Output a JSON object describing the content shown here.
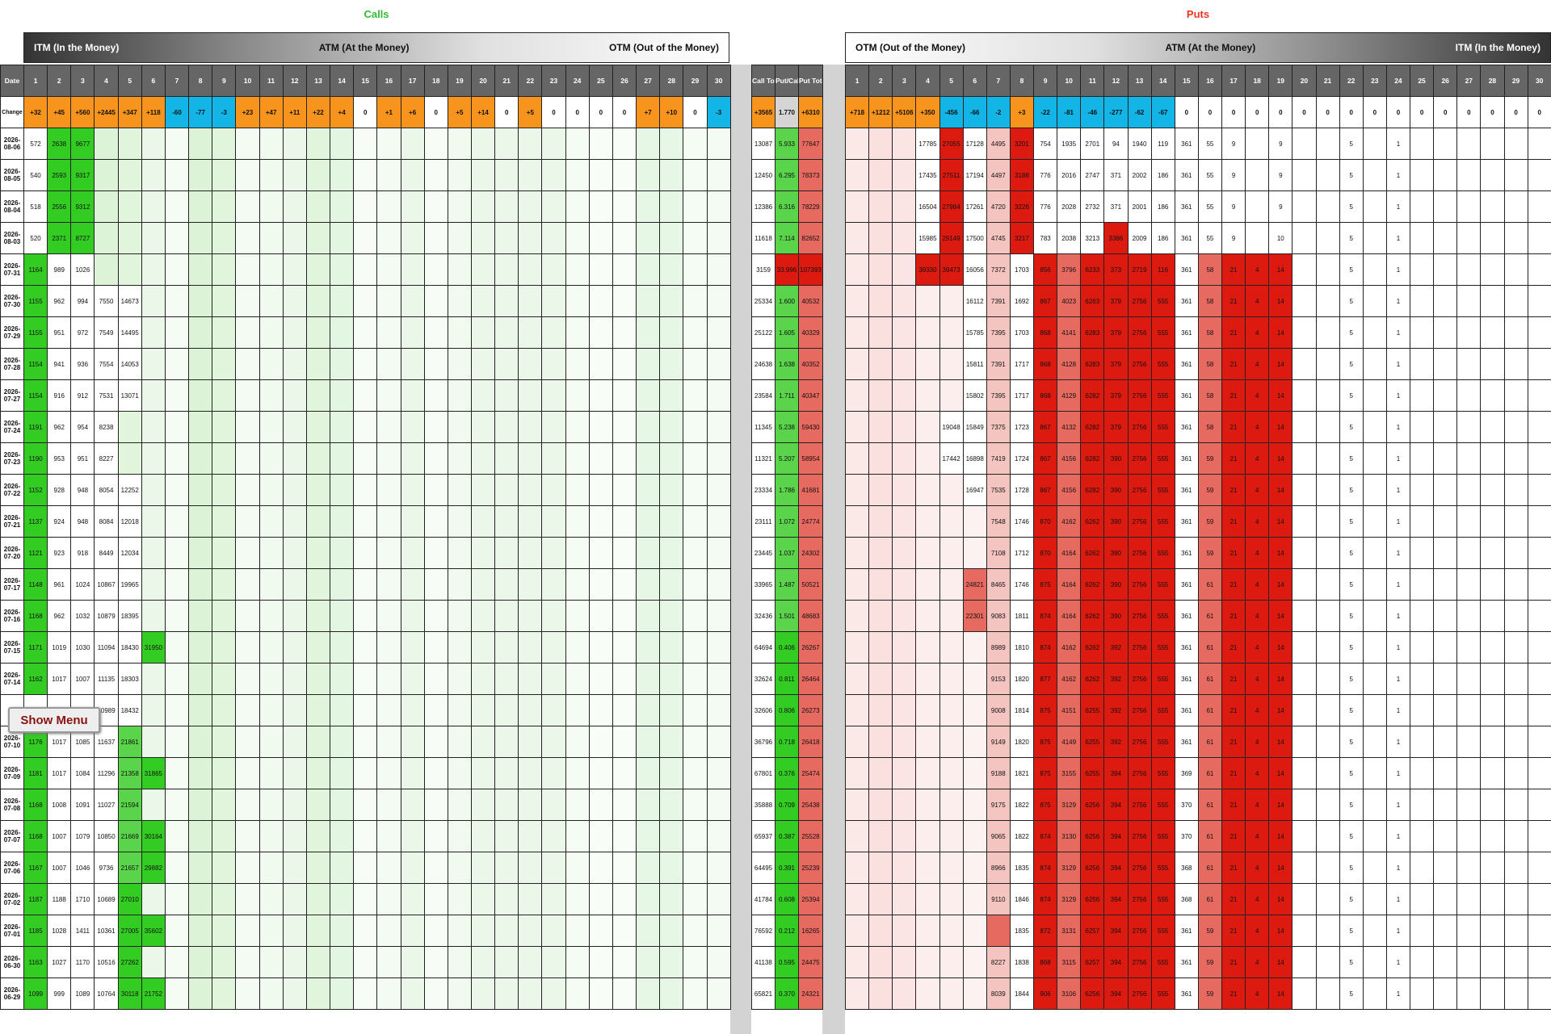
{
  "titles": {
    "calls": "Calls",
    "puts": "Puts"
  },
  "calls_band": {
    "left": "ITM (In the Money)",
    "center": "ATM (At the Money)",
    "right": "OTM (Out of the Money)"
  },
  "puts_band": {
    "left": "OTM (Out of the Money)",
    "center": "ATM (At the Money)",
    "right": "ITM (In the Money)"
  },
  "headers": {
    "date": "Date",
    "strikes": [
      "1",
      "2",
      "3",
      "4",
      "5",
      "6",
      "7",
      "8",
      "9",
      "10",
      "11",
      "12",
      "13",
      "14",
      "15",
      "16",
      "17",
      "18",
      "19",
      "20",
      "21",
      "22",
      "23",
      "24",
      "25",
      "26",
      "27",
      "28",
      "29",
      "30"
    ],
    "call_total": "Call Total",
    "pcr": "Put/Call",
    "put_total": "Put Total"
  },
  "change_label": "Change",
  "changes": {
    "calls": [
      "+32",
      "+45",
      "+560",
      "+2445",
      "+347",
      "+118",
      "-60",
      "-77",
      "-3",
      "+23",
      "+47",
      "+11",
      "+22",
      "+4",
      "0",
      "+1",
      "+6",
      "0",
      "+5",
      "+14",
      "0",
      "+5",
      "0",
      "0",
      "0",
      "0",
      "+7",
      "+10",
      "0",
      "-3"
    ],
    "call_total": "+3565",
    "pcr": "1.770",
    "put_total": "+6310",
    "puts": [
      "+718",
      "+1212",
      "+5106",
      "+350",
      "-456",
      "-66",
      "-2",
      "+3",
      "-22",
      "-81",
      "-46",
      "-277",
      "-62",
      "-67",
      "0",
      "0",
      "0",
      "0",
      "0",
      "0",
      "0",
      "0",
      "0",
      "0",
      "0",
      "0",
      "0",
      "0",
      "0",
      "0"
    ]
  },
  "dates": [
    "2026-08-06",
    "2026-08-05",
    "2026-08-04",
    "2026-08-03",
    "2026-07-31",
    "2026-07-30",
    "2026-07-29",
    "2026-07-28",
    "2026-07-27",
    "2026-07-24",
    "2026-07-23",
    "2026-07-22",
    "2026-07-21",
    "2026-07-20",
    "2026-07-17",
    "2026-07-16",
    "2026-07-15",
    "2026-07-14",
    "",
    "2026-07-10",
    "2026-07-09",
    "2026-07-08",
    "2026-07-07",
    "2026-07-06",
    "2026-07-02",
    "2026-07-01",
    "2026-06-30",
    "2026-06-29"
  ],
  "call_rows": [
    [
      "572",
      "2638",
      "9677"
    ],
    [
      "540",
      "2593",
      "9317"
    ],
    [
      "518",
      "2556",
      "9312"
    ],
    [
      "520",
      "2371",
      "8727"
    ],
    [
      "1164",
      "989",
      "1026"
    ],
    [
      "1155",
      "962",
      "994",
      "7550",
      "14673"
    ],
    [
      "1155",
      "951",
      "972",
      "7549",
      "14495"
    ],
    [
      "1154",
      "941",
      "936",
      "7554",
      "14053"
    ],
    [
      "1154",
      "916",
      "912",
      "7531",
      "13071"
    ],
    [
      "1191",
      "962",
      "954",
      "8238"
    ],
    [
      "1190",
      "953",
      "951",
      "8227"
    ],
    [
      "1152",
      "928",
      "948",
      "8054",
      "12252"
    ],
    [
      "1137",
      "924",
      "948",
      "8084",
      "12018"
    ],
    [
      "1121",
      "923",
      "918",
      "8449",
      "12034"
    ],
    [
      "1148",
      "961",
      "1024",
      "10867",
      "19965"
    ],
    [
      "1168",
      "962",
      "1032",
      "10879",
      "18395"
    ],
    [
      "1171",
      "1019",
      "1030",
      "11094",
      "18430",
      "31950"
    ],
    [
      "1162",
      "1017",
      "1007",
      "11135",
      "18303"
    ],
    [
      "",
      "",
      "",
      "10989",
      "18432"
    ],
    [
      "1176",
      "1017",
      "1085",
      "11637",
      "21861"
    ],
    [
      "1181",
      "1017",
      "1084",
      "11296",
      "21358",
      "31865"
    ],
    [
      "1168",
      "1008",
      "1091",
      "11027",
      "21594"
    ],
    [
      "1168",
      "1007",
      "1079",
      "10850",
      "21669",
      "30164"
    ],
    [
      "1167",
      "1007",
      "1046",
      "9736",
      "21657",
      "29882"
    ],
    [
      "1187",
      "1188",
      "1710",
      "10689",
      "27010"
    ],
    [
      "1185",
      "1028",
      "1411",
      "10361",
      "27005",
      "35602"
    ],
    [
      "1163",
      "1027",
      "1170",
      "10516",
      "27262"
    ],
    [
      "1099",
      "999",
      "1089",
      "10764",
      "30118",
      "21752"
    ]
  ],
  "totals": [
    [
      "13087",
      "5.933",
      "77647"
    ],
    [
      "12450",
      "6.295",
      "78373"
    ],
    [
      "12386",
      "6.316",
      "78229"
    ],
    [
      "11618",
      "7.114",
      "82652"
    ],
    [
      "3159",
      "33.996",
      "107393"
    ],
    [
      "25334",
      "1.600",
      "40532"
    ],
    [
      "25122",
      "1.605",
      "40329"
    ],
    [
      "24638",
      "1.638",
      "40352"
    ],
    [
      "23584",
      "1.711",
      "40347"
    ],
    [
      "11345",
      "5.238",
      "59430"
    ],
    [
      "11321",
      "5.207",
      "58954"
    ],
    [
      "23334",
      "1.786",
      "41681"
    ],
    [
      "23111",
      "1.072",
      "24774"
    ],
    [
      "23445",
      "1.037",
      "24302"
    ],
    [
      "33965",
      "1.487",
      "50521"
    ],
    [
      "32436",
      "1.501",
      "48683"
    ],
    [
      "64694",
      "0.406",
      "26267"
    ],
    [
      "32624",
      "0.811",
      "26464"
    ],
    [
      "32606",
      "0.806",
      "26273"
    ],
    [
      "36796",
      "0.718",
      "26418"
    ],
    [
      "67801",
      "0.376",
      "25474"
    ],
    [
      "35888",
      "0.709",
      "25438"
    ],
    [
      "65937",
      "0.387",
      "25528"
    ],
    [
      "64495",
      "0.391",
      "25239"
    ],
    [
      "41784",
      "0.608",
      "25394"
    ],
    [
      "76592",
      "0.212",
      "16265"
    ],
    [
      "41138",
      "0.595",
      "24475"
    ],
    [
      "65821",
      "0.370",
      "24321"
    ]
  ],
  "put_rows": [
    [
      "",
      "",
      "",
      "17785",
      "27055",
      "17128",
      "4495",
      "3201",
      "754",
      "1935",
      "2701",
      "94",
      "1940",
      "119",
      "361",
      "55",
      "9",
      "",
      "9",
      "",
      "",
      "5",
      "",
      "1"
    ],
    [
      "",
      "",
      "",
      "17435",
      "27511",
      "17194",
      "4497",
      "3188",
      "776",
      "2016",
      "2747",
      "371",
      "2002",
      "186",
      "361",
      "55",
      "9",
      "",
      "9",
      "",
      "",
      "5",
      "",
      "1"
    ],
    [
      "",
      "",
      "",
      "16504",
      "27984",
      "17261",
      "4720",
      "3226",
      "776",
      "2028",
      "2732",
      "371",
      "2001",
      "186",
      "361",
      "55",
      "9",
      "",
      "9",
      "",
      "",
      "5",
      "",
      "1"
    ],
    [
      "",
      "",
      "",
      "15985",
      "29149",
      "17500",
      "4745",
      "3217",
      "783",
      "2038",
      "3213",
      "3386",
      "2009",
      "186",
      "361",
      "55",
      "9",
      "",
      "10",
      "",
      "",
      "5",
      "",
      "1"
    ],
    [
      "",
      "",
      "",
      "39330",
      "39473",
      "16056",
      "7372",
      "1703",
      "856",
      "3796",
      "6233",
      "373",
      "2719",
      "116",
      "361",
      "58",
      "21",
      "4",
      "14",
      "",
      "",
      "5",
      "",
      "1"
    ],
    [
      "",
      "",
      "",
      "",
      "",
      "16112",
      "7391",
      "1692",
      "867",
      "4023",
      "6263",
      "379",
      "2756",
      "555",
      "361",
      "58",
      "21",
      "4",
      "14",
      "",
      "",
      "5",
      "",
      "1"
    ],
    [
      "",
      "",
      "",
      "",
      "",
      "15785",
      "7395",
      "1703",
      "868",
      "4141",
      "6283",
      "379",
      "2756",
      "555",
      "361",
      "58",
      "21",
      "4",
      "14",
      "",
      "",
      "5",
      "",
      "1"
    ],
    [
      "",
      "",
      "",
      "",
      "",
      "15811",
      "7391",
      "1717",
      "868",
      "4128",
      "6283",
      "379",
      "2756",
      "555",
      "361",
      "58",
      "21",
      "4",
      "14",
      "",
      "",
      "5",
      "",
      "1"
    ],
    [
      "",
      "",
      "",
      "",
      "",
      "15802",
      "7395",
      "1717",
      "868",
      "4129",
      "6282",
      "379",
      "2756",
      "555",
      "361",
      "58",
      "21",
      "4",
      "14",
      "",
      "",
      "5",
      "",
      "1"
    ],
    [
      "",
      "",
      "",
      "",
      "19048",
      "15849",
      "7375",
      "1723",
      "867",
      "4132",
      "6282",
      "379",
      "2756",
      "555",
      "361",
      "58",
      "21",
      "4",
      "14",
      "",
      "",
      "5",
      "",
      "1"
    ],
    [
      "",
      "",
      "",
      "",
      "17442",
      "16898",
      "7419",
      "1724",
      "867",
      "4156",
      "6282",
      "390",
      "2756",
      "555",
      "361",
      "59",
      "21",
      "4",
      "14",
      "",
      "",
      "5",
      "",
      "1"
    ],
    [
      "",
      "",
      "",
      "",
      "",
      "16947",
      "7535",
      "1728",
      "867",
      "4156",
      "6282",
      "390",
      "2756",
      "555",
      "361",
      "59",
      "21",
      "4",
      "14",
      "",
      "",
      "5",
      "",
      "1"
    ],
    [
      "",
      "",
      "",
      "",
      "",
      "",
      "7548",
      "1746",
      "870",
      "4162",
      "6262",
      "390",
      "2756",
      "555",
      "361",
      "59",
      "21",
      "4",
      "14",
      "",
      "",
      "5",
      "",
      "1"
    ],
    [
      "",
      "",
      "",
      "",
      "",
      "",
      "7108",
      "1712",
      "870",
      "4164",
      "6262",
      "390",
      "2756",
      "555",
      "361",
      "59",
      "21",
      "4",
      "14",
      "",
      "",
      "5",
      "",
      "1"
    ],
    [
      "",
      "",
      "",
      "",
      "",
      "24821",
      "8465",
      "1746",
      "875",
      "4164",
      "6262",
      "390",
      "2756",
      "555",
      "361",
      "61",
      "21",
      "4",
      "14",
      "",
      "",
      "5",
      "",
      "1"
    ],
    [
      "",
      "",
      "",
      "",
      "",
      "22301",
      "9083",
      "1811",
      "874",
      "4164",
      "6262",
      "390",
      "2756",
      "555",
      "361",
      "61",
      "21",
      "4",
      "14",
      "",
      "",
      "5",
      "",
      "1"
    ],
    [
      "",
      "",
      "",
      "",
      "",
      "",
      "8989",
      "1810",
      "874",
      "4162",
      "6262",
      "392",
      "2756",
      "555",
      "361",
      "61",
      "21",
      "4",
      "14",
      "",
      "",
      "5",
      "",
      "1"
    ],
    [
      "",
      "",
      "",
      "",
      "",
      "",
      "9153",
      "1820",
      "877",
      "4162",
      "6262",
      "392",
      "2756",
      "555",
      "361",
      "61",
      "21",
      "4",
      "14",
      "",
      "",
      "5",
      "",
      "1"
    ],
    [
      "",
      "",
      "",
      "",
      "",
      "",
      "9008",
      "1814",
      "875",
      "4151",
      "6255",
      "392",
      "2756",
      "555",
      "361",
      "61",
      "21",
      "4",
      "14",
      "",
      "",
      "5",
      "",
      "1"
    ],
    [
      "",
      "",
      "",
      "",
      "",
      "",
      "9149",
      "1820",
      "875",
      "4149",
      "6255",
      "392",
      "2756",
      "555",
      "361",
      "61",
      "21",
      "4",
      "14",
      "",
      "",
      "5",
      "",
      "1"
    ],
    [
      "",
      "",
      "",
      "",
      "",
      "",
      "9188",
      "1821",
      "875",
      "3155",
      "6255",
      "394",
      "2756",
      "555",
      "369",
      "61",
      "21",
      "4",
      "14",
      "",
      "",
      "5",
      "",
      "1"
    ],
    [
      "",
      "",
      "",
      "",
      "",
      "",
      "9175",
      "1822",
      "875",
      "3129",
      "6256",
      "394",
      "2756",
      "555",
      "370",
      "61",
      "21",
      "4",
      "14",
      "",
      "",
      "5",
      "",
      "1"
    ],
    [
      "",
      "",
      "",
      "",
      "",
      "",
      "9065",
      "1822",
      "874",
      "3130",
      "6256",
      "394",
      "2756",
      "555",
      "370",
      "61",
      "21",
      "4",
      "14",
      "",
      "",
      "5",
      "",
      "1"
    ],
    [
      "",
      "",
      "",
      "",
      "",
      "",
      "8966",
      "1835",
      "874",
      "3129",
      "6256",
      "394",
      "2756",
      "555",
      "368",
      "61",
      "21",
      "4",
      "14",
      "",
      "",
      "5",
      "",
      "1"
    ],
    [
      "",
      "",
      "",
      "",
      "",
      "",
      "9110",
      "1846",
      "874",
      "3129",
      "6256",
      "394",
      "2756",
      "555",
      "368",
      "61",
      "21",
      "4",
      "14",
      "",
      "",
      "5",
      "",
      "1"
    ],
    [
      "",
      "",
      "",
      "",
      "",
      "",
      "",
      "1835",
      "872",
      "3131",
      "6257",
      "394",
      "2756",
      "555",
      "361",
      "59",
      "21",
      "4",
      "14",
      "",
      "",
      "5",
      "",
      "1"
    ],
    [
      "",
      "",
      "",
      "",
      "",
      "",
      "8227",
      "1838",
      "868",
      "3115",
      "6257",
      "394",
      "2756",
      "555",
      "361",
      "59",
      "21",
      "4",
      "14",
      "",
      "",
      "5",
      "",
      "1"
    ],
    [
      "",
      "",
      "",
      "",
      "",
      "",
      "8039",
      "1844",
      "906",
      "3106",
      "6256",
      "394",
      "2756",
      "555",
      "361",
      "59",
      "21",
      "4",
      "14",
      "",
      "",
      "5",
      "",
      "1"
    ]
  ],
  "menu_button": "Show Menu",
  "colors": {
    "call_strong": "#33cc22",
    "put_strong": "#dd1a0f",
    "change_up": "#f7941d",
    "change_down": "#12b5e5",
    "header_bg": "#666666"
  }
}
